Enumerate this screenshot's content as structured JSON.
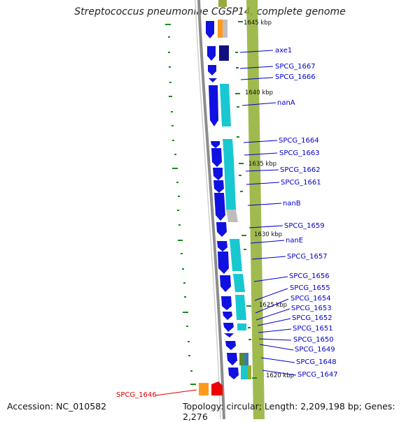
{
  "title": "Streptococcus pneumoniae CGSP14, complete genome",
  "footer": {
    "accession": "Accession: NC_010582",
    "summary": "Topology: circular; Length: 2,209,198 bp; Genes: 2,276"
  },
  "colors": {
    "forward_cds": "#1010e0",
    "reverse_cds": "#18c8d0",
    "backbone": "#8c8c8c",
    "gc_ticks": "#1a8a1a",
    "label_blue": "#0000cc",
    "label_red": "#dd0000"
  },
  "kbp_marks": [
    "1645 kbp",
    "1640 kbp",
    "1635 kbp",
    "1630 kbp",
    "1625 kbp",
    "1620 kbp"
  ],
  "genes": [
    {
      "name": "axe1",
      "color": "blue"
    },
    {
      "name": "SPCG_1667",
      "color": "blue"
    },
    {
      "name": "SPCG_1666",
      "color": "blue"
    },
    {
      "name": "nanA",
      "color": "blue"
    },
    {
      "name": "SPCG_1664",
      "color": "blue"
    },
    {
      "name": "SPCG_1663",
      "color": "blue"
    },
    {
      "name": "SPCG_1662",
      "color": "blue"
    },
    {
      "name": "SPCG_1661",
      "color": "blue"
    },
    {
      "name": "nanB",
      "color": "blue"
    },
    {
      "name": "SPCG_1659",
      "color": "blue"
    },
    {
      "name": "nanE",
      "color": "blue"
    },
    {
      "name": "SPCG_1657",
      "color": "blue"
    },
    {
      "name": "SPCG_1656",
      "color": "blue"
    },
    {
      "name": "SPCG_1655",
      "color": "blue"
    },
    {
      "name": "SPCG_1654",
      "color": "blue"
    },
    {
      "name": "SPCG_1653",
      "color": "blue"
    },
    {
      "name": "SPCG_1652",
      "color": "blue"
    },
    {
      "name": "SPCG_1651",
      "color": "blue"
    },
    {
      "name": "SPCG_1650",
      "color": "blue"
    },
    {
      "name": "SPCG_1649",
      "color": "blue"
    },
    {
      "name": "SPCG_1648",
      "color": "blue"
    },
    {
      "name": "SPCG_1647",
      "color": "blue"
    },
    {
      "name": "SPCG_1646",
      "color": "red"
    }
  ]
}
